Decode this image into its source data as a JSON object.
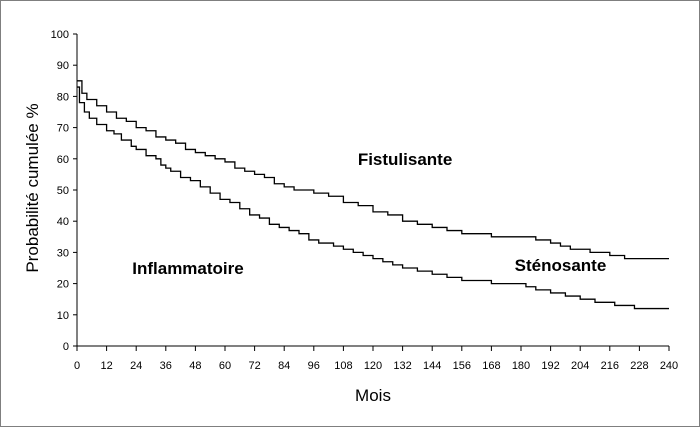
{
  "chart_data": {
    "type": "line",
    "step": true,
    "title": "",
    "xlabel": "Mois",
    "ylabel": "Probabilité cumulée %",
    "xlim": [
      0,
      240
    ],
    "ylim": [
      0,
      100
    ],
    "x_ticks": [
      0,
      12,
      24,
      36,
      48,
      60,
      72,
      84,
      96,
      108,
      120,
      132,
      144,
      156,
      168,
      180,
      192,
      204,
      216,
      228,
      240
    ],
    "y_ticks": [
      0,
      10,
      20,
      30,
      40,
      50,
      60,
      70,
      80,
      90,
      100
    ],
    "grid": false,
    "legend": "none",
    "line_color": "#000000",
    "series": [
      {
        "name": "Fistulisante",
        "points": [
          [
            0,
            85
          ],
          [
            2,
            81
          ],
          [
            4,
            79
          ],
          [
            8,
            77
          ],
          [
            12,
            75
          ],
          [
            16,
            73
          ],
          [
            20,
            72
          ],
          [
            24,
            70
          ],
          [
            28,
            69
          ],
          [
            32,
            67
          ],
          [
            36,
            66
          ],
          [
            40,
            65
          ],
          [
            44,
            63
          ],
          [
            48,
            62
          ],
          [
            52,
            61
          ],
          [
            56,
            60
          ],
          [
            60,
            59
          ],
          [
            64,
            57
          ],
          [
            68,
            56
          ],
          [
            72,
            55
          ],
          [
            76,
            54
          ],
          [
            80,
            52
          ],
          [
            84,
            51
          ],
          [
            88,
            50
          ],
          [
            96,
            49
          ],
          [
            102,
            48
          ],
          [
            108,
            46
          ],
          [
            114,
            45
          ],
          [
            120,
            43
          ],
          [
            126,
            42
          ],
          [
            132,
            40
          ],
          [
            138,
            39
          ],
          [
            144,
            38
          ],
          [
            150,
            37
          ],
          [
            156,
            36
          ],
          [
            168,
            35
          ],
          [
            186,
            34
          ],
          [
            192,
            33
          ],
          [
            196,
            32
          ],
          [
            200,
            31
          ],
          [
            208,
            30
          ],
          [
            216,
            29
          ],
          [
            222,
            28
          ],
          [
            240,
            28
          ]
        ]
      },
      {
        "name": "Sténosante",
        "points": [
          [
            0,
            83
          ],
          [
            1,
            78
          ],
          [
            3,
            75
          ],
          [
            5,
            73
          ],
          [
            8,
            71
          ],
          [
            12,
            69
          ],
          [
            15,
            68
          ],
          [
            18,
            66
          ],
          [
            22,
            64
          ],
          [
            24,
            63
          ],
          [
            28,
            61
          ],
          [
            32,
            60
          ],
          [
            34,
            58
          ],
          [
            36,
            57
          ],
          [
            38,
            56
          ],
          [
            42,
            54
          ],
          [
            46,
            53
          ],
          [
            50,
            51
          ],
          [
            54,
            49
          ],
          [
            58,
            47
          ],
          [
            62,
            46
          ],
          [
            66,
            44
          ],
          [
            70,
            42
          ],
          [
            74,
            41
          ],
          [
            78,
            39
          ],
          [
            82,
            38
          ],
          [
            86,
            37
          ],
          [
            90,
            36
          ],
          [
            94,
            34
          ],
          [
            98,
            33
          ],
          [
            104,
            32
          ],
          [
            108,
            31
          ],
          [
            112,
            30
          ],
          [
            116,
            29
          ],
          [
            120,
            28
          ],
          [
            124,
            27
          ],
          [
            128,
            26
          ],
          [
            132,
            25
          ],
          [
            138,
            24
          ],
          [
            144,
            23
          ],
          [
            150,
            22
          ],
          [
            156,
            21
          ],
          [
            168,
            20
          ],
          [
            182,
            19
          ],
          [
            186,
            18
          ],
          [
            192,
            17
          ],
          [
            198,
            16
          ],
          [
            204,
            15
          ],
          [
            210,
            14
          ],
          [
            218,
            13
          ],
          [
            226,
            12
          ],
          [
            240,
            12
          ]
        ]
      }
    ],
    "annotations": [
      {
        "text": "Fistulisante",
        "x": 133,
        "y": 58
      },
      {
        "text": "Sténosante",
        "x": 196,
        "y": 24
      },
      {
        "text": "Inflammatoire",
        "x": 45,
        "y": 23
      }
    ]
  }
}
